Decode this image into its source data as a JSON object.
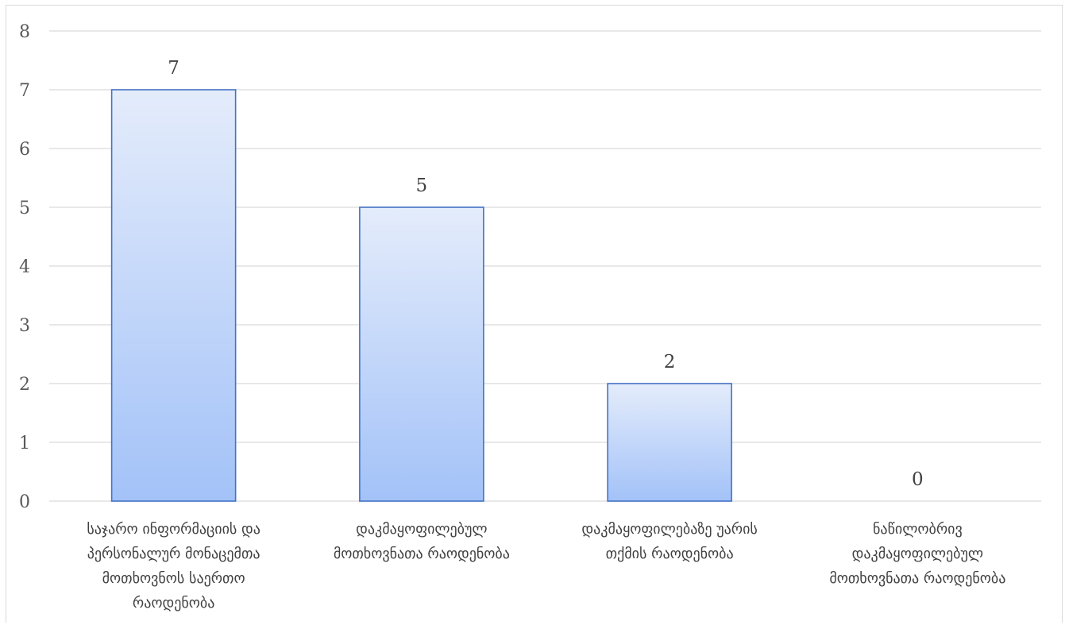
{
  "chart_data": {
    "type": "bar",
    "title": "",
    "xlabel": "",
    "ylabel": "",
    "ylim": [
      0,
      8
    ],
    "y_ticks": [
      "0",
      "1",
      "2",
      "3",
      "4",
      "5",
      "6",
      "7",
      "8"
    ],
    "grid": true,
    "legend": "none",
    "categories": [
      [
        "საჯარო ინფორმაციის და",
        "პერსონალურ მონაცემთა",
        "მოთხოვნოს საერთო",
        "რაოდენობა"
      ],
      [
        "დაკმაყოფილებულ",
        "მოთხოვნათა რაოდენობა"
      ],
      [
        "დაკმაყოფილებაზე უარის",
        "თქმის რაოდენობა"
      ],
      [
        "ნაწილობრივ",
        "დაკმაყოფილებულ",
        "მოთხოვნათა რაოდენობა"
      ]
    ],
    "values": [
      7,
      5,
      2,
      0
    ],
    "data_labels": [
      "7",
      "5",
      "2",
      "0"
    ],
    "colors": {
      "bar_top": "#e4ecfb",
      "bar_bottom": "#a3c2f8",
      "bar_border": "#4472c4",
      "grid": "#d9d9d9",
      "tick_text": "#595959",
      "label_text": "#404040"
    }
  }
}
